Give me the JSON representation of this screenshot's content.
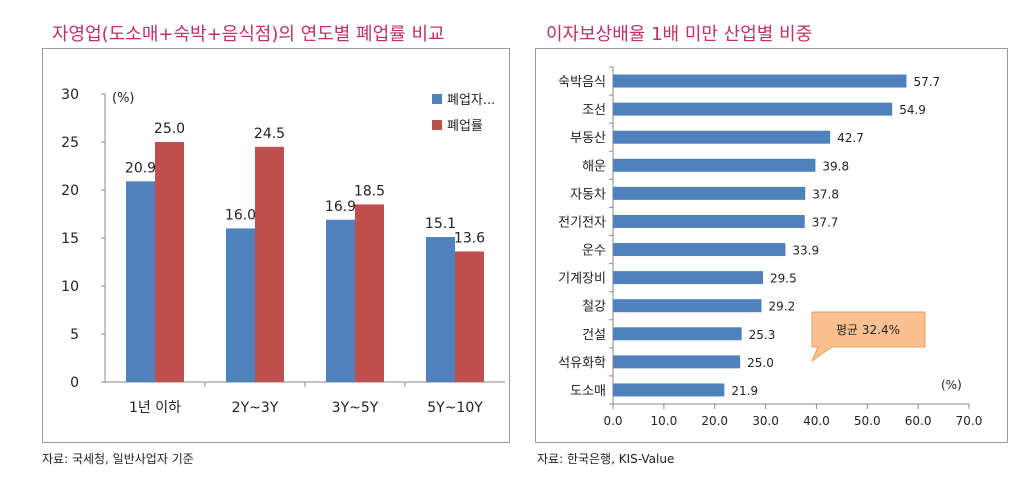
{
  "left": {
    "title": "자영업(도소매+숙박+음식점)의 연도별 폐업률 비교",
    "source": "자료: 국세청, 일반사업자 기준",
    "chart_data": {
      "type": "bar",
      "title": "자영업(도소매+숙박+음식점)의 연도별 폐업률 비교",
      "unit_label": "(%)",
      "categories": [
        "1년 이하",
        "2Y~3Y",
        "3Y~5Y",
        "5Y~10Y"
      ],
      "series": [
        {
          "name": "폐업자...",
          "color": "#4f81bd",
          "values": [
            20.9,
            16.0,
            16.9,
            15.1
          ],
          "labels": [
            "20.9",
            "16.0",
            "16.9",
            "15.1"
          ]
        },
        {
          "name": "폐업률",
          "color": "#c0504d",
          "values": [
            25.0,
            24.5,
            18.5,
            13.6
          ],
          "labels": [
            "25.0",
            "24.5",
            "18.5",
            "13.6"
          ]
        }
      ],
      "ylim": [
        0,
        30
      ],
      "yticks": [
        0,
        5,
        10,
        15,
        20,
        25,
        30
      ],
      "grid": false,
      "legend": "top-right"
    }
  },
  "right": {
    "title": "이자보상배율 1배 미만 산업별 비중",
    "source": "자료: 한국은행, KIS-Value",
    "chart_data": {
      "type": "bar",
      "orientation": "horizontal",
      "title": "이자보상배율 1배 미만 산업별 비중",
      "unit_label": "(%)",
      "categories": [
        "숙박음식",
        "조선",
        "부동산",
        "해운",
        "자동차",
        "전기전자",
        "운수",
        "기계장비",
        "철강",
        "건설",
        "석유화학",
        "도소매"
      ],
      "values": [
        57.7,
        54.9,
        42.7,
        39.8,
        37.8,
        37.7,
        33.9,
        29.5,
        29.2,
        25.3,
        25.0,
        21.9
      ],
      "labels": [
        "57.7",
        "54.9",
        "42.7",
        "39.8",
        "37.8",
        "37.7",
        "33.9",
        "29.5",
        "29.2",
        "25.3",
        "25.0",
        "21.9"
      ],
      "bar_color": "#4f81bd",
      "xlim": [
        0,
        70
      ],
      "xticks": [
        "0.0",
        "10.0",
        "20.0",
        "30.0",
        "40.0",
        "50.0",
        "60.0",
        "70.0"
      ],
      "grid": false,
      "annotation": {
        "text": "평균 32.4%",
        "fill": "#fac090",
        "border": "#e8a060"
      }
    }
  }
}
